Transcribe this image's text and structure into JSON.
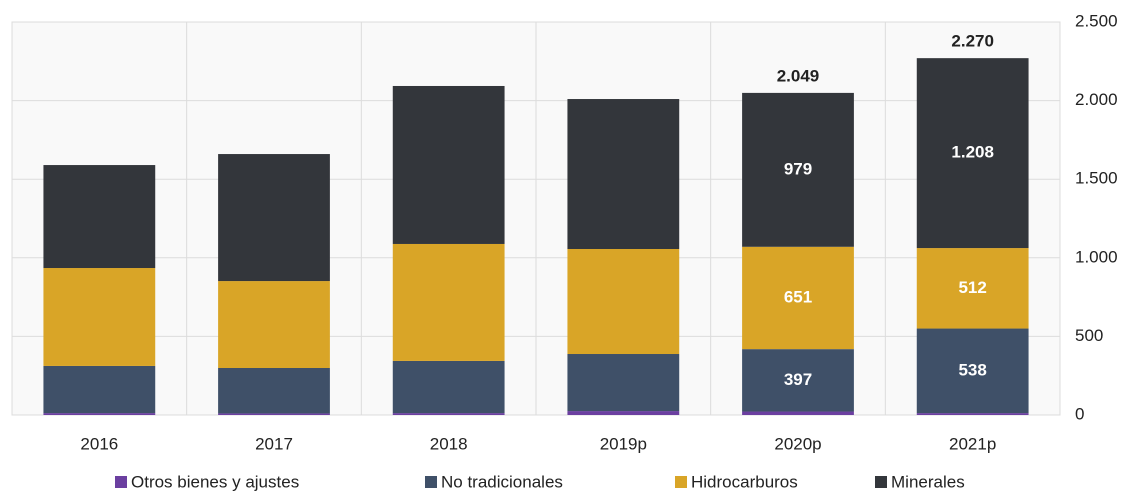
{
  "chart_data": {
    "type": "stacked_bar",
    "categories": [
      "2016",
      "2017",
      "2018",
      "2019p",
      "2020p",
      "2021p"
    ],
    "series": [
      {
        "name": "Otros bienes y ajustes",
        "color": "#6b3fa0",
        "values": [
          12,
          10,
          12,
          25,
          22,
          12
        ]
      },
      {
        "name": "No tradicionales",
        "color": "#3f5068",
        "values": [
          300,
          289,
          332,
          363,
          397,
          538
        ],
        "value_labels": [
          null,
          null,
          null,
          null,
          "397",
          "538"
        ]
      },
      {
        "name": "Hidrocarburos",
        "color": "#d9a527",
        "values": [
          623,
          553,
          744,
          668,
          651,
          512
        ],
        "value_labels": [
          null,
          null,
          null,
          null,
          "651",
          "512"
        ]
      },
      {
        "name": "Minerales",
        "color": "#33363b",
        "values": [
          655,
          808,
          1005,
          954,
          979,
          1208
        ],
        "value_labels": [
          null,
          null,
          null,
          null,
          "979",
          "1.208"
        ]
      }
    ],
    "totals": {
      "values": [
        null,
        null,
        null,
        null,
        2049,
        2270
      ],
      "value_labels": [
        null,
        null,
        null,
        null,
        "2.049",
        "2.270"
      ]
    },
    "ylim": [
      0,
      2500
    ],
    "yticks": [
      0,
      500,
      {
        "value": 1000,
        "label": "1.000"
      },
      {
        "value": 1500,
        "label": "1.500"
      },
      {
        "value": 2000,
        "label": "2.000"
      },
      {
        "value": 2500,
        "label": "2.500"
      }
    ],
    "grid": true
  }
}
